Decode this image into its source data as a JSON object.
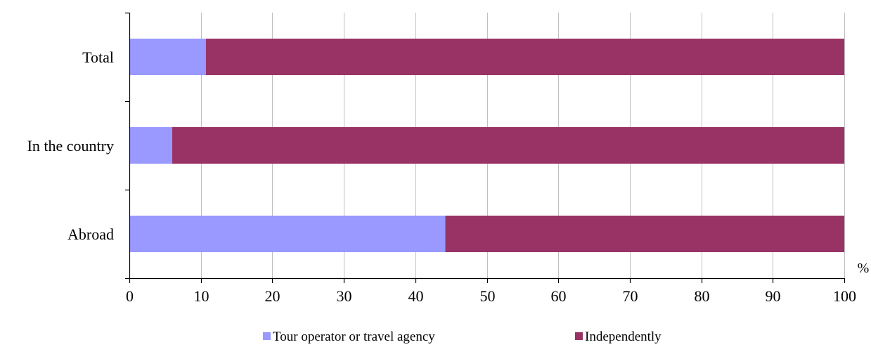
{
  "chart_data": {
    "type": "bar",
    "orientation": "horizontal",
    "stacked": true,
    "categories": [
      "Total",
      "In the country",
      "Abroad"
    ],
    "series": [
      {
        "name": "Tour operator or travel agency",
        "color": "#9999ff",
        "values": [
          10.7,
          6.0,
          44.2
        ]
      },
      {
        "name": "Independently",
        "color": "#993366",
        "values": [
          89.3,
          94.0,
          55.8
        ]
      }
    ],
    "x_unit": "%",
    "xlim": [
      0,
      100
    ],
    "xticks": [
      0,
      10,
      20,
      30,
      40,
      50,
      60,
      70,
      80,
      90,
      100
    ],
    "grid": "vertical",
    "legend_position": "bottom",
    "title": "",
    "xlabel": "",
    "ylabel": ""
  }
}
